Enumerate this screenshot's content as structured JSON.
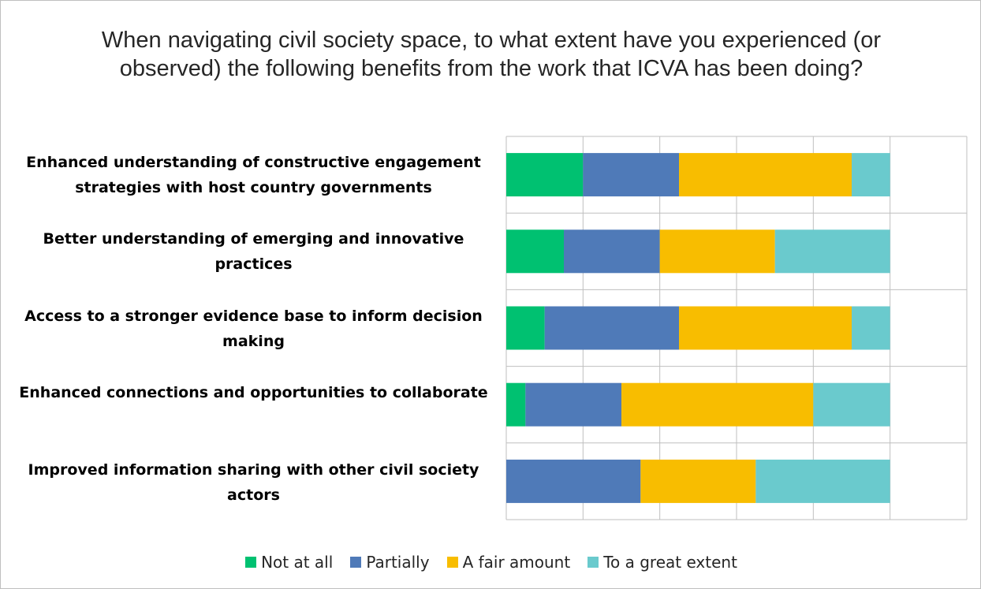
{
  "chart_data": {
    "type": "bar",
    "orientation": "horizontal",
    "stacked": true,
    "title": "When navigating civil society space, to what extent have you experienced (or observed) the following benefits from the work that ICVA has been doing?",
    "categories": [
      "Enhanced understanding of constructive engagement strategies with host country governments",
      "Better understanding of emerging and innovative practices",
      "Access to a stronger evidence base to inform decision making",
      "Enhanced connections and opportunities to collaborate",
      "Improved information sharing with other civil society actors"
    ],
    "series": [
      {
        "name": "Not at all",
        "color": "#00c171",
        "values": [
          4,
          3,
          2,
          1,
          0
        ]
      },
      {
        "name": "Partially",
        "color": "#4f7ab8",
        "values": [
          5,
          5,
          7,
          5,
          7
        ]
      },
      {
        "name": "A fair amount",
        "color": "#f8bd00",
        "values": [
          9,
          6,
          9,
          10,
          6
        ]
      },
      {
        "name": "To a great extent",
        "color": "#6acacd",
        "values": [
          2,
          6,
          2,
          4,
          7
        ]
      }
    ],
    "xlim": [
      0,
      24
    ],
    "x_gridline_step": 4,
    "grid": true,
    "legend_position": "bottom"
  }
}
